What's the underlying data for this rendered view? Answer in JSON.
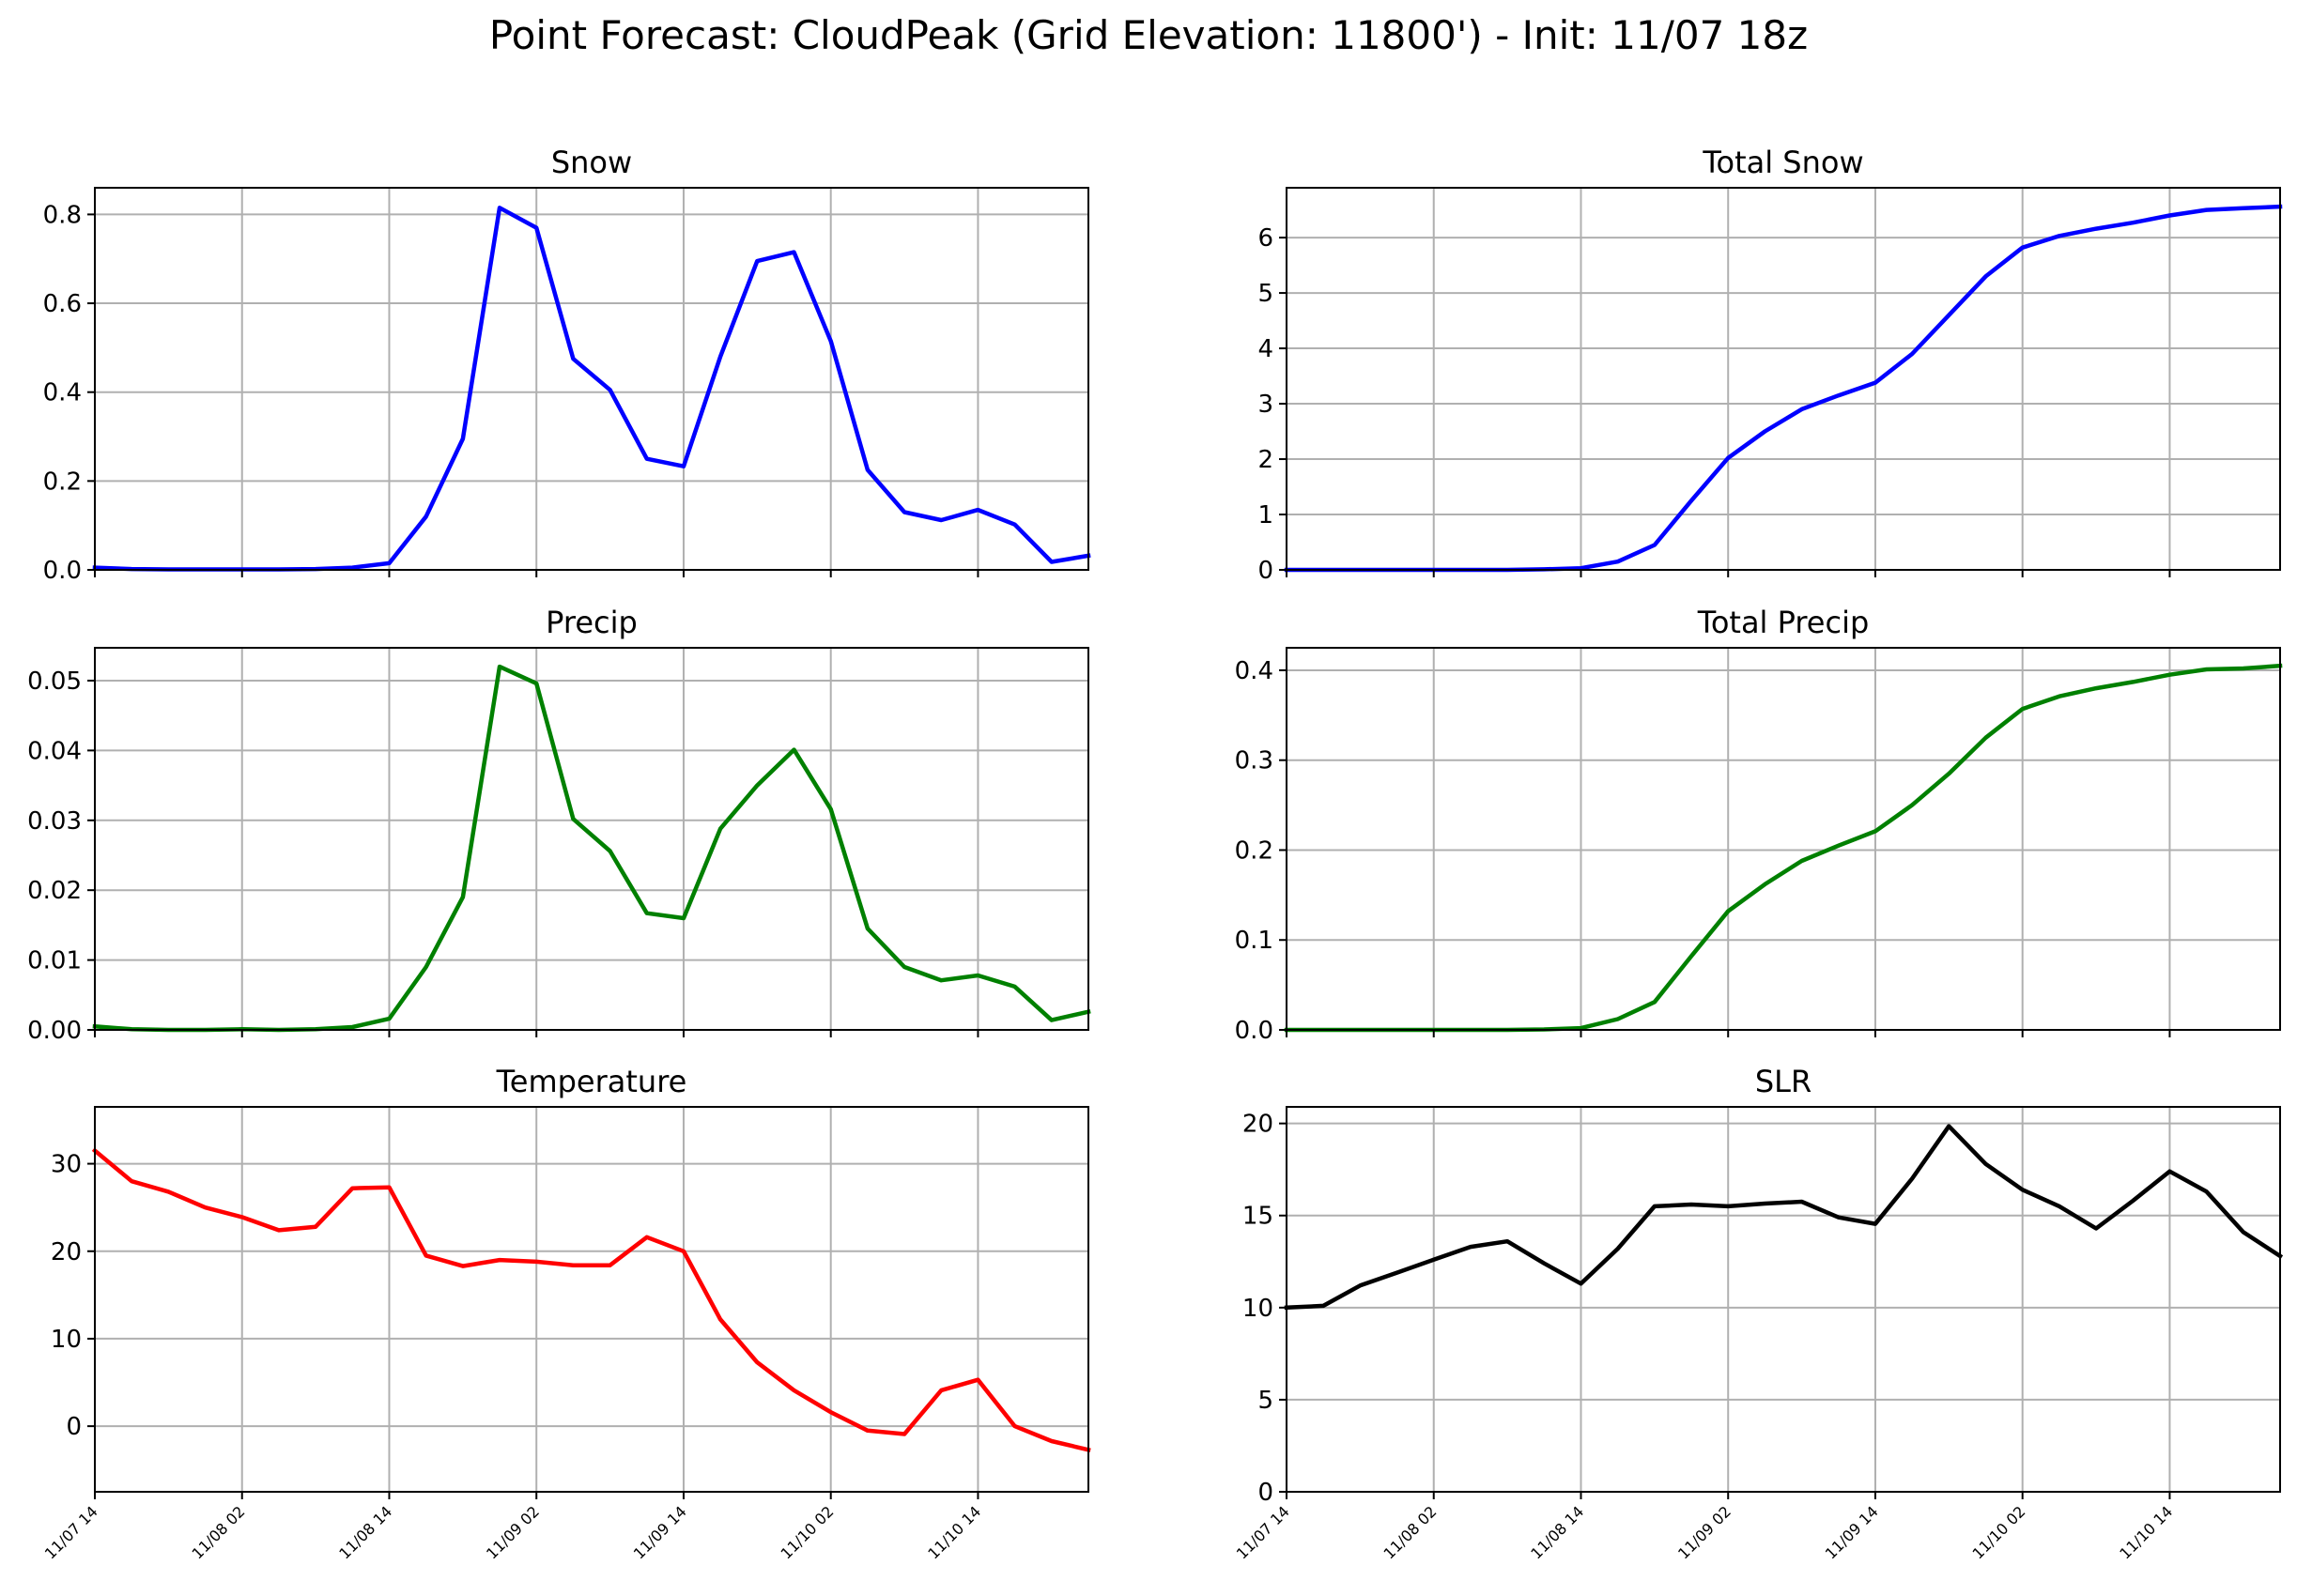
{
  "title": "Point Forecast: CloudPeak (Grid Elevation: 11800') - Init: 11/07 18z",
  "chart_data": [
    {
      "type": "line",
      "title": "Snow",
      "color": "#0000ff",
      "ylim": [
        0,
        0.86
      ],
      "yticks": [
        0.0,
        0.2,
        0.4,
        0.6,
        0.8
      ],
      "ytick_labels": [
        "0.0",
        "0.2",
        "0.4",
        "0.6",
        "0.8"
      ],
      "xlim": [
        0,
        81
      ],
      "xticks": [
        0,
        12,
        24,
        36,
        48,
        60,
        72
      ],
      "xtick_labels": [
        "11/07 14",
        "11/08 02",
        "11/08 14",
        "11/09 02",
        "11/09 14",
        "11/10 02",
        "11/10 14"
      ],
      "show_xtick_labels": false,
      "grid": true,
      "x": [
        0,
        3,
        6,
        9,
        12,
        15,
        18,
        21,
        24,
        27,
        30,
        33,
        36,
        39,
        42,
        45,
        48,
        51,
        54,
        57,
        60,
        63,
        66,
        69,
        72,
        75,
        78,
        81
      ],
      "values": [
        0.005,
        0.002,
        0.001,
        0.001,
        0.001,
        0.001,
        0.002,
        0.005,
        0.015,
        0.12,
        0.295,
        0.815,
        0.77,
        0.475,
        0.405,
        0.25,
        0.233,
        0.48,
        0.695,
        0.715,
        0.515,
        0.225,
        0.13,
        0.112,
        0.135,
        0.102,
        0.018,
        0.032
      ]
    },
    {
      "type": "line",
      "title": "Total Snow",
      "color": "#0000ff",
      "ylim": [
        0,
        6.9
      ],
      "yticks": [
        0,
        1,
        2,
        3,
        4,
        5,
        6
      ],
      "ytick_labels": [
        "0",
        "1",
        "2",
        "3",
        "4",
        "5",
        "6"
      ],
      "xlim": [
        0,
        81
      ],
      "xticks": [
        0,
        12,
        24,
        36,
        48,
        60,
        72
      ],
      "xtick_labels": [
        "11/07 14",
        "11/08 02",
        "11/08 14",
        "11/09 02",
        "11/09 14",
        "11/10 02",
        "11/10 14"
      ],
      "show_xtick_labels": false,
      "grid": true,
      "x": [
        0,
        3,
        6,
        9,
        12,
        15,
        18,
        21,
        24,
        27,
        30,
        33,
        36,
        39,
        42,
        45,
        48,
        51,
        54,
        57,
        60,
        63,
        66,
        69,
        72,
        75,
        78,
        81
      ],
      "values": [
        0.0,
        0.0,
        0.0,
        0.0,
        0.0,
        0.0,
        0.0,
        0.01,
        0.03,
        0.15,
        0.45,
        1.25,
        2.02,
        2.5,
        2.9,
        3.15,
        3.38,
        3.9,
        4.6,
        5.3,
        5.82,
        6.03,
        6.16,
        6.27,
        6.4,
        6.5,
        6.53,
        6.56
      ]
    },
    {
      "type": "line",
      "title": "Precip",
      "color": "#008000",
      "ylim": [
        0,
        0.0547
      ],
      "yticks": [
        0.0,
        0.01,
        0.02,
        0.03,
        0.04,
        0.05
      ],
      "ytick_labels": [
        "0.00",
        "0.01",
        "0.02",
        "0.03",
        "0.04",
        "0.05"
      ],
      "xlim": [
        0,
        81
      ],
      "xticks": [
        0,
        12,
        24,
        36,
        48,
        60,
        72
      ],
      "xtick_labels": [
        "11/07 14",
        "11/08 02",
        "11/08 14",
        "11/09 02",
        "11/09 14",
        "11/10 02",
        "11/10 14"
      ],
      "show_xtick_labels": false,
      "grid": true,
      "x": [
        0,
        3,
        6,
        9,
        12,
        15,
        18,
        21,
        24,
        27,
        30,
        33,
        36,
        39,
        42,
        45,
        48,
        51,
        54,
        57,
        60,
        63,
        66,
        69,
        72,
        75,
        78,
        81
      ],
      "values": [
        0.0005,
        0.0001,
        0.0,
        0.0,
        0.0001,
        0.0,
        0.0001,
        0.0004,
        0.0016,
        0.009,
        0.019,
        0.052,
        0.0496,
        0.0302,
        0.0256,
        0.0167,
        0.016,
        0.0288,
        0.035,
        0.0401,
        0.0316,
        0.0145,
        0.009,
        0.0071,
        0.0078,
        0.0062,
        0.0014,
        0.0026
      ]
    },
    {
      "type": "line",
      "title": "Total Precip",
      "color": "#008000",
      "ylim": [
        0,
        0.425
      ],
      "yticks": [
        0.0,
        0.1,
        0.2,
        0.3,
        0.4
      ],
      "ytick_labels": [
        "0.0",
        "0.1",
        "0.2",
        "0.3",
        "0.4"
      ],
      "xlim": [
        0,
        81
      ],
      "xticks": [
        0,
        12,
        24,
        36,
        48,
        60,
        72
      ],
      "xtick_labels": [
        "11/07 14",
        "11/08 02",
        "11/08 14",
        "11/09 02",
        "11/09 14",
        "11/10 02",
        "11/10 14"
      ],
      "show_xtick_labels": false,
      "grid": true,
      "x": [
        0,
        3,
        6,
        9,
        12,
        15,
        18,
        21,
        24,
        27,
        30,
        33,
        36,
        39,
        42,
        45,
        48,
        51,
        54,
        57,
        60,
        63,
        66,
        69,
        72,
        75,
        78,
        81
      ],
      "values": [
        0.0,
        0.0,
        0.0,
        0.0,
        0.0,
        0.0,
        0.0,
        0.0005,
        0.002,
        0.012,
        0.031,
        0.082,
        0.132,
        0.162,
        0.188,
        0.205,
        0.221,
        0.25,
        0.285,
        0.325,
        0.357,
        0.371,
        0.38,
        0.387,
        0.395,
        0.401,
        0.402,
        0.405
      ]
    },
    {
      "type": "line",
      "title": "Temperature",
      "color": "#ff0000",
      "ylim": [
        -7.5,
        36.5
      ],
      "yticks": [
        0,
        10,
        20,
        30
      ],
      "ytick_labels": [
        "0",
        "10",
        "20",
        "30"
      ],
      "xlim": [
        0,
        81
      ],
      "xticks": [
        0,
        12,
        24,
        36,
        48,
        60,
        72
      ],
      "xtick_labels": [
        "11/07 14",
        "11/08 02",
        "11/08 14",
        "11/09 02",
        "11/09 14",
        "11/10 02",
        "11/10 14"
      ],
      "show_xtick_labels": true,
      "grid": true,
      "x": [
        0,
        3,
        6,
        9,
        12,
        15,
        18,
        21,
        24,
        27,
        30,
        33,
        36,
        39,
        42,
        45,
        48,
        51,
        54,
        57,
        60,
        63,
        66,
        69,
        72,
        75,
        78,
        81
      ],
      "values": [
        31.5,
        28.0,
        26.8,
        25.0,
        23.9,
        22.4,
        22.8,
        27.2,
        27.3,
        19.5,
        18.3,
        19.0,
        18.8,
        18.4,
        18.4,
        21.6,
        20.0,
        12.2,
        7.3,
        4.1,
        1.6,
        -0.5,
        -0.9,
        4.1,
        5.3,
        0.0,
        -1.7,
        -2.7
      ]
    },
    {
      "type": "line",
      "title": "SLR",
      "color": "#000000",
      "ylim": [
        0,
        20.9
      ],
      "yticks": [
        0,
        5,
        10,
        15,
        20
      ],
      "ytick_labels": [
        "0",
        "5",
        "10",
        "15",
        "20"
      ],
      "xlim": [
        0,
        81
      ],
      "xticks": [
        0,
        12,
        24,
        36,
        48,
        60,
        72
      ],
      "xtick_labels": [
        "11/07 14",
        "11/08 02",
        "11/08 14",
        "11/09 02",
        "11/09 14",
        "11/10 02",
        "11/10 14"
      ],
      "show_xtick_labels": true,
      "grid": true,
      "x": [
        0,
        3,
        6,
        9,
        12,
        15,
        18,
        21,
        24,
        27,
        30,
        33,
        36,
        39,
        42,
        45,
        48,
        51,
        54,
        57,
        60,
        63,
        66,
        69,
        72,
        75,
        78,
        81
      ],
      "values": [
        10.0,
        10.1,
        11.2,
        11.9,
        12.6,
        13.3,
        13.6,
        12.4,
        11.3,
        13.2,
        15.5,
        15.6,
        15.5,
        15.65,
        15.75,
        14.9,
        14.55,
        17.0,
        19.85,
        17.8,
        16.4,
        15.5,
        14.3,
        15.8,
        17.4,
        16.3,
        14.1,
        12.8
      ]
    }
  ]
}
